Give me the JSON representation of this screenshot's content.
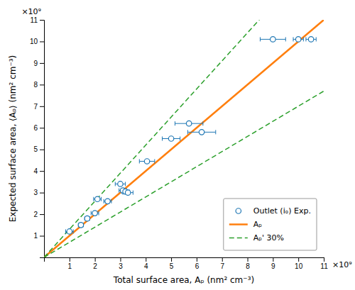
{
  "chart_data": {
    "type": "scatter",
    "xlabel": "Total surface area, Aₚ (nm² cm⁻³)",
    "ylabel": "Expected surface area, ⟨Aₚ⟩ (nm² cm⁻³)",
    "annotations": [
      "×10⁹",
      "×10⁹"
    ],
    "xlim": [
      0,
      11
    ],
    "ylim": [
      0,
      11
    ],
    "xticks": [
      1,
      2,
      3,
      4,
      5,
      6,
      7,
      8,
      9,
      10,
      11
    ],
    "yticks": [
      1,
      2,
      3,
      4,
      5,
      6,
      7,
      8,
      9,
      10,
      11
    ],
    "grid": false,
    "legend": "lower right",
    "series": [
      {
        "name": "Outlet (iₒ) Exp.",
        "type": "scatter",
        "marker": "circle",
        "x": [
          1.0,
          1.45,
          1.7,
          2.0,
          2.1,
          2.5,
          3.0,
          3.1,
          3.2,
          3.3,
          4.05,
          5.0,
          5.7,
          6.2,
          9.0,
          10.0,
          10.5
        ],
        "values": [
          1.2,
          1.5,
          1.8,
          2.05,
          2.7,
          2.6,
          3.4,
          3.1,
          3.05,
          3.0,
          4.45,
          5.5,
          6.2,
          5.8,
          10.1,
          10.1,
          10.1
        ],
        "xerr": [
          0.15,
          0.1,
          0.1,
          0.15,
          0.15,
          0.15,
          0.2,
          0.15,
          0.15,
          0.2,
          0.3,
          0.35,
          0.55,
          0.55,
          0.5,
          0.2,
          0.2
        ]
      },
      {
        "name": "Aₚ",
        "type": "line",
        "line_style": "solid",
        "x": [
          0,
          11
        ],
        "values": [
          0,
          11
        ]
      },
      {
        "name": "Aₚ' 30%",
        "type": "band",
        "line_style": "dashed",
        "x": [
          0,
          11
        ],
        "upper": [
          0,
          14.3
        ],
        "lower": [
          0,
          7.7
        ]
      }
    ]
  }
}
